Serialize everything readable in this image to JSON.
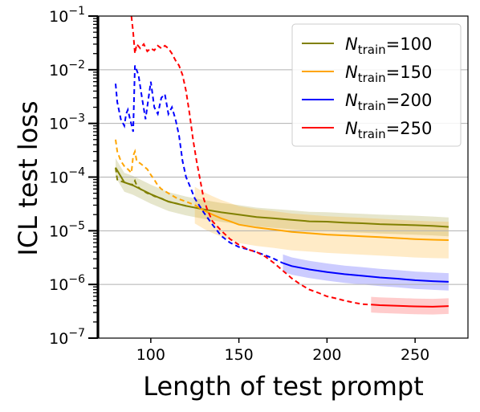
{
  "chart_data": {
    "type": "line",
    "xlabel": "Length of test prompt",
    "ylabel": "ICL test loss",
    "xlim": [
      70,
      280
    ],
    "ylim": [
      1e-07,
      0.1
    ],
    "yscale": "log",
    "x_ticks": [
      100,
      150,
      200,
      250
    ],
    "y_ticks": [
      {
        "value": 1e-07,
        "base": "10",
        "exp": "−7"
      },
      {
        "value": 1e-06,
        "base": "10",
        "exp": "−6"
      },
      {
        "value": 1e-05,
        "base": "10",
        "exp": "−5"
      },
      {
        "value": 0.0001,
        "base": "10",
        "exp": "−4"
      },
      {
        "value": 0.001,
        "base": "10",
        "exp": "−3"
      },
      {
        "value": 0.01,
        "base": "10",
        "exp": "−2"
      },
      {
        "value": 0.1,
        "base": "10",
        "exp": "−1"
      }
    ],
    "grid": "horizontal",
    "legend_position": "top-right",
    "series": [
      {
        "label_main": "N",
        "label_sub": "train",
        "label_value": "=100",
        "color": "#808000",
        "train_length": 80,
        "dashed": [
          [
            80,
            0.00015
          ],
          [
            81,
            9e-05
          ],
          [
            82,
            8.6e-05
          ],
          [
            84,
            8.2e-05
          ],
          [
            86,
            7.8e-05
          ],
          [
            88,
            7.4e-05
          ],
          [
            90,
            7.2e-05
          ],
          [
            91,
            8.5e-05
          ],
          [
            92,
            7e-05
          ],
          [
            94,
            6e-05
          ],
          [
            96,
            5.5e-05
          ],
          [
            98,
            5e-05
          ],
          [
            100,
            4.8e-05
          ],
          [
            102,
            4.4e-05
          ],
          [
            104,
            4.2e-05
          ],
          [
            106,
            4e-05
          ],
          [
            110,
            3.5e-05
          ],
          [
            115,
            3.2e-05
          ],
          [
            120,
            2.9e-05
          ]
        ],
        "solid": [
          [
            80,
            0.00015
          ],
          [
            85,
            8e-05
          ],
          [
            90,
            7e-05
          ],
          [
            100,
            4.8e-05
          ],
          [
            110,
            3.5e-05
          ],
          [
            120,
            2.9e-05
          ],
          [
            130,
            2.5e-05
          ],
          [
            140,
            2.2e-05
          ],
          [
            150,
            2e-05
          ],
          [
            160,
            1.8e-05
          ],
          [
            170,
            1.7e-05
          ],
          [
            180,
            1.6e-05
          ],
          [
            190,
            1.5e-05
          ],
          [
            200,
            1.48e-05
          ],
          [
            210,
            1.42e-05
          ],
          [
            220,
            1.38e-05
          ],
          [
            230,
            1.33e-05
          ],
          [
            240,
            1.3e-05
          ],
          [
            250,
            1.27e-05
          ],
          [
            260,
            1.23e-05
          ],
          [
            269,
            1.18e-05
          ]
        ],
        "band_start": 80,
        "band_factor": 1.5
      },
      {
        "label_main": "N",
        "label_sub": "train",
        "label_value": "=150",
        "color": "#ffa500",
        "train_length": 125,
        "dashed": [
          [
            80,
            0.0005
          ],
          [
            81,
            0.0003
          ],
          [
            83,
            0.0002
          ],
          [
            85,
            0.00016
          ],
          [
            87,
            0.00014
          ],
          [
            89,
            0.00012
          ],
          [
            90,
            0.00025
          ],
          [
            91,
            0.0003
          ],
          [
            92,
            0.0002
          ],
          [
            94,
            0.00018
          ],
          [
            96,
            0.00016
          ],
          [
            98,
            0.00014
          ],
          [
            100,
            0.00011
          ],
          [
            102,
            9e-05
          ],
          [
            104,
            7e-05
          ],
          [
            106,
            6e-05
          ],
          [
            110,
            5e-05
          ],
          [
            115,
            4e-05
          ],
          [
            120,
            3.5e-05
          ],
          [
            125,
            3e-05
          ]
        ],
        "solid": [
          [
            125,
            3e-05
          ],
          [
            130,
            2.4e-05
          ],
          [
            135,
            2e-05
          ],
          [
            140,
            1.7e-05
          ],
          [
            145,
            1.5e-05
          ],
          [
            150,
            1.3e-05
          ],
          [
            160,
            1.15e-05
          ],
          [
            170,
            1.05e-05
          ],
          [
            180,
            9.5e-06
          ],
          [
            190,
            9e-06
          ],
          [
            200,
            8.5e-06
          ],
          [
            210,
            8.2e-06
          ],
          [
            220,
            7.9e-06
          ],
          [
            230,
            7.6e-06
          ],
          [
            240,
            7.3e-06
          ],
          [
            250,
            7e-06
          ],
          [
            260,
            6.8e-06
          ],
          [
            269,
            6.7e-06
          ]
        ],
        "band_start": 125,
        "band_factor": 2.2
      },
      {
        "label_main": "N",
        "label_sub": "train",
        "label_value": "=200",
        "color": "#0000ff",
        "train_length": 175,
        "dashed": [
          [
            80,
            0.0055
          ],
          [
            81,
            0.0025
          ],
          [
            83,
            0.0012
          ],
          [
            85,
            0.0009
          ],
          [
            86,
            0.0015
          ],
          [
            87,
            0.0018
          ],
          [
            88,
            0.0013
          ],
          [
            90,
            0.0007
          ],
          [
            91,
            0.012
          ],
          [
            93,
            0.008
          ],
          [
            95,
            0.003
          ],
          [
            97,
            0.0012
          ],
          [
            99,
            0.0035
          ],
          [
            100,
            0.006
          ],
          [
            102,
            0.002
          ],
          [
            104,
            0.0015
          ],
          [
            106,
            0.003
          ],
          [
            108,
            0.0035
          ],
          [
            110,
            0.0015
          ],
          [
            112,
            0.002
          ],
          [
            114,
            0.0012
          ],
          [
            116,
            0.0006
          ],
          [
            118,
            0.0002
          ],
          [
            120,
            0.0001
          ],
          [
            122,
            7e-05
          ],
          [
            125,
            4e-05
          ],
          [
            130,
            2.2e-05
          ],
          [
            135,
            1.3e-05
          ],
          [
            140,
            8e-06
          ],
          [
            145,
            6e-06
          ],
          [
            150,
            5e-06
          ],
          [
            155,
            4.5e-06
          ],
          [
            160,
            4e-06
          ],
          [
            165,
            3.5e-06
          ],
          [
            170,
            3e-06
          ],
          [
            175,
            2.5e-06
          ]
        ],
        "solid": [
          [
            175,
            2.5e-06
          ],
          [
            180,
            2.2e-06
          ],
          [
            190,
            1.9e-06
          ],
          [
            200,
            1.7e-06
          ],
          [
            210,
            1.55e-06
          ],
          [
            220,
            1.45e-06
          ],
          [
            230,
            1.35e-06
          ],
          [
            240,
            1.28e-06
          ],
          [
            250,
            1.2e-06
          ],
          [
            260,
            1.15e-06
          ],
          [
            269,
            1.12e-06
          ]
        ],
        "band_start": 175,
        "band_factor": 1.45
      },
      {
        "label_main": "N",
        "label_sub": "train",
        "label_value": "=250",
        "color": "#ff0000",
        "train_length": 225,
        "dashed": [
          [
            89,
            0.1
          ],
          [
            90,
            0.05
          ],
          [
            91,
            0.02
          ],
          [
            92,
            0.03
          ],
          [
            94,
            0.025
          ],
          [
            96,
            0.03
          ],
          [
            98,
            0.022
          ],
          [
            100,
            0.025
          ],
          [
            102,
            0.023
          ],
          [
            104,
            0.028
          ],
          [
            106,
            0.025
          ],
          [
            108,
            0.028
          ],
          [
            110,
            0.025
          ],
          [
            112,
            0.02
          ],
          [
            114,
            0.015
          ],
          [
            116,
            0.012
          ],
          [
            118,
            0.008
          ],
          [
            120,
            0.004
          ],
          [
            122,
            0.0015
          ],
          [
            124,
            0.0005
          ],
          [
            126,
            0.0002
          ],
          [
            128,
            9e-05
          ],
          [
            130,
            4e-05
          ],
          [
            132,
            2.5e-05
          ],
          [
            135,
            1.5e-05
          ],
          [
            140,
            1e-05
          ],
          [
            145,
            7e-06
          ],
          [
            150,
            5.5e-06
          ],
          [
            155,
            4.5e-06
          ],
          [
            160,
            4e-06
          ],
          [
            165,
            3.3e-06
          ],
          [
            170,
            2.5e-06
          ],
          [
            175,
            1.8e-06
          ],
          [
            180,
            1.3e-06
          ],
          [
            185,
            1e-06
          ],
          [
            190,
            8e-07
          ],
          [
            195,
            7e-07
          ],
          [
            200,
            6e-07
          ],
          [
            205,
            5.5e-07
          ],
          [
            210,
            5e-07
          ],
          [
            215,
            4.6e-07
          ],
          [
            220,
            4.3e-07
          ],
          [
            225,
            4.2e-07
          ]
        ],
        "solid": [
          [
            225,
            4.2e-07
          ],
          [
            230,
            4.1e-07
          ],
          [
            240,
            4e-07
          ],
          [
            250,
            3.9e-07
          ],
          [
            260,
            3.85e-07
          ],
          [
            269,
            3.95e-07
          ]
        ],
        "band_start": 225,
        "band_factor": 1.4
      }
    ]
  }
}
